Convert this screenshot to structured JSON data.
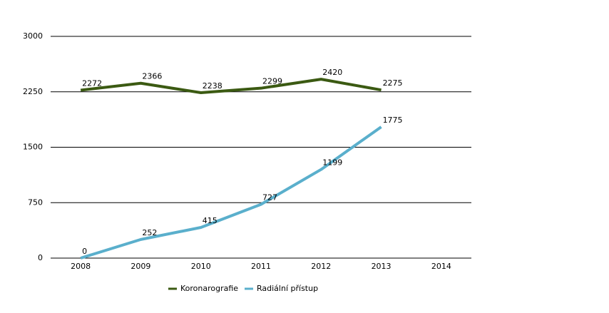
{
  "chart_data": {
    "type": "line",
    "categories": [
      "2008",
      "2009",
      "2010",
      "2011",
      "2012",
      "2013",
      "2014"
    ],
    "series": [
      {
        "name": "Koronarografie",
        "color": "#3b5a12",
        "values": [
          2272,
          2366,
          2238,
          2299,
          2420,
          2275,
          null
        ]
      },
      {
        "name": "Radiální přístup",
        "color": "#5aafcc",
        "values": [
          0,
          252,
          415,
          727,
          1199,
          1775,
          null
        ]
      }
    ],
    "ylim": [
      0,
      3000
    ],
    "yticks": [
      0,
      750,
      1500,
      2250,
      3000
    ],
    "grid": true,
    "legend": "bottom"
  }
}
